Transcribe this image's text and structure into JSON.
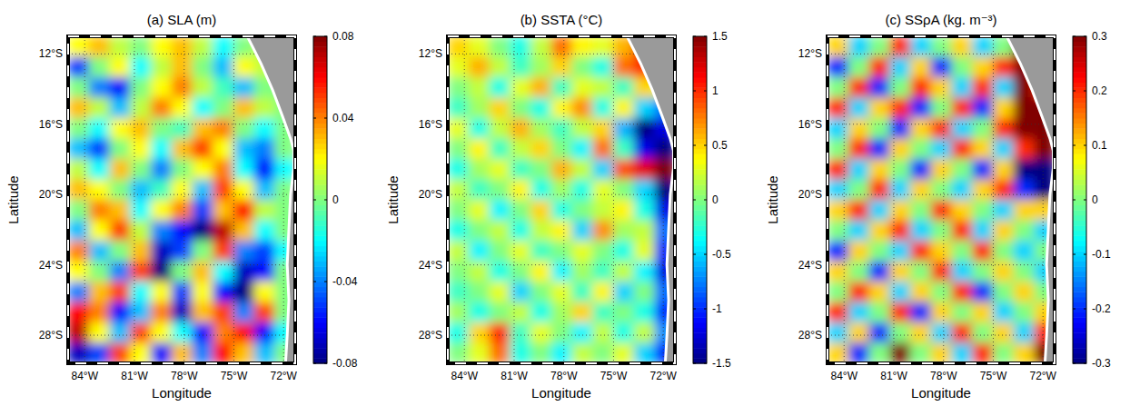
{
  "chart_data": [
    {
      "type": "heatmap",
      "title": "(a)   SLA (m)",
      "x_label": "Longitude",
      "y_label": "Latitude",
      "xlim": [
        -85,
        -71.3
      ],
      "ylim": [
        -29.6,
        -11
      ],
      "xticks": [
        {
          "value": -84,
          "label": "84°W"
        },
        {
          "value": -81,
          "label": "81°W"
        },
        {
          "value": -78,
          "label": "78°W"
        },
        {
          "value": -75,
          "label": "75°W"
        },
        {
          "value": -72,
          "label": "72°W"
        }
      ],
      "yticks": [
        {
          "value": -12,
          "label": "12°S"
        },
        {
          "value": -16,
          "label": "16°S"
        },
        {
          "value": -20,
          "label": "20°S"
        },
        {
          "value": -24,
          "label": "24°S"
        },
        {
          "value": -28,
          "label": "28°S"
        }
      ],
      "grid": true,
      "colorbar_range": [
        -0.08,
        0.08
      ],
      "colorbar_ticks": [
        -0.08,
        -0.04,
        0,
        0.04,
        0.08
      ],
      "coast": {
        "lon": [
          -74.1,
          -73.3,
          -72.6,
          -72.0,
          -71.5,
          -71.3,
          -71.3,
          -71.5,
          -71.6,
          -71.7,
          -71.6,
          -71.7,
          -71.8
        ],
        "lat": [
          -11,
          -12.5,
          -14,
          -15.5,
          -16.8,
          -17.5,
          -18.5,
          -20,
          -22,
          -24,
          -26,
          -28,
          -29.6
        ]
      },
      "cells": [
        [
          0.02,
          0.03,
          0.01,
          0,
          0.02,
          0.03,
          0.01,
          -0.02,
          0,
          0.01,
          0.01
        ],
        [
          -0.05,
          0,
          0.02,
          -0.02,
          0.01,
          0.03,
          0,
          -0.03,
          0.02,
          0.01,
          0.01
        ],
        [
          0,
          -0.04,
          -0.06,
          0,
          0.02,
          0.04,
          0.01,
          -0.01,
          -0.03,
          0,
          0
        ],
        [
          0.03,
          0.01,
          -0.03,
          0.01,
          0.04,
          0.02,
          -0.02,
          0,
          0.03,
          0.01,
          0
        ],
        [
          0,
          -0.02,
          0.02,
          0.03,
          0,
          -0.01,
          0.03,
          0.04,
          0,
          -0.02,
          0
        ],
        [
          -0.03,
          -0.05,
          0,
          0.02,
          -0.02,
          0.03,
          0.05,
          0.02,
          -0.03,
          -0.04,
          0
        ],
        [
          0.01,
          -0.02,
          0.03,
          0,
          -0.04,
          0,
          0.02,
          0.04,
          -0.02,
          -0.06,
          -0.02
        ],
        [
          0.03,
          0.02,
          0,
          -0.03,
          -0.01,
          0.02,
          -0.03,
          0.05,
          0.02,
          -0.03,
          0
        ],
        [
          0,
          0.04,
          0.03,
          -0.02,
          0.02,
          0.04,
          -0.05,
          0.03,
          0.06,
          0.01,
          0
        ],
        [
          -0.03,
          0.02,
          0.05,
          0.01,
          -0.04,
          -0.06,
          -0.08,
          0.07,
          0.03,
          -0.02,
          0
        ],
        [
          0.04,
          -0.03,
          0,
          0.03,
          -0.07,
          -0.05,
          0,
          0.05,
          -0.04,
          -0.05,
          -0.02
        ],
        [
          0.02,
          0,
          -0.04,
          0.05,
          -0.08,
          0,
          0.03,
          -0.02,
          -0.07,
          -0.06,
          0
        ],
        [
          -0.04,
          0.03,
          0.05,
          -0.02,
          0.02,
          -0.05,
          0.02,
          -0.06,
          -0.08,
          0.02,
          0
        ],
        [
          0.06,
          0.04,
          -0.06,
          -0.03,
          0.04,
          -0.07,
          0.03,
          0.05,
          -0.04,
          0.05,
          0
        ],
        [
          0.07,
          0.02,
          -0.03,
          0.05,
          0.02,
          -0.02,
          -0.06,
          0.04,
          0.06,
          -0.06,
          -0.02
        ],
        [
          -0.07,
          -0.05,
          0.05,
          0.02,
          -0.06,
          0.03,
          -0.04,
          0.06,
          0.03,
          -0.03,
          0
        ]
      ]
    },
    {
      "type": "heatmap",
      "title": "(b)   SSTA (°C)",
      "x_label": "Longitude",
      "y_label": "Latitude",
      "xlim": [
        -85,
        -71.3
      ],
      "ylim": [
        -29.6,
        -11
      ],
      "xticks": [
        {
          "value": -84,
          "label": "84°W"
        },
        {
          "value": -81,
          "label": "81°W"
        },
        {
          "value": -78,
          "label": "78°W"
        },
        {
          "value": -75,
          "label": "75°W"
        },
        {
          "value": -72,
          "label": "72°W"
        }
      ],
      "yticks": [
        {
          "value": -12,
          "label": "12°S"
        },
        {
          "value": -16,
          "label": "16°S"
        },
        {
          "value": -20,
          "label": "20°S"
        },
        {
          "value": -24,
          "label": "24°S"
        },
        {
          "value": -28,
          "label": "28°S"
        }
      ],
      "grid": true,
      "colorbar_range": [
        -1.5,
        1.5
      ],
      "colorbar_ticks": [
        -1.5,
        -1,
        -0.5,
        0,
        0.5,
        1,
        1.5
      ],
      "coast": {
        "lon": [
          -74.1,
          -73.3,
          -72.6,
          -72.0,
          -71.5,
          -71.3,
          -71.3,
          -71.5,
          -71.6,
          -71.7,
          -71.6,
          -71.7,
          -71.8
        ],
        "lat": [
          -11,
          -12.5,
          -14,
          -15.5,
          -16.8,
          -17.5,
          -18.5,
          -20,
          -22,
          -24,
          -26,
          -28,
          -29.6
        ]
      },
      "cells": [
        [
          0.5,
          0.3,
          0,
          -0.3,
          0.2,
          0.8,
          0.4,
          0.3,
          0.6,
          1.2,
          0.5
        ],
        [
          0.3,
          0.6,
          0.2,
          -0.2,
          0.1,
          0.5,
          0,
          -0.3,
          0.8,
          1.0,
          0.5
        ],
        [
          0,
          0.2,
          -0.3,
          0.3,
          0.6,
          -0.2,
          0.3,
          0.2,
          -0.2,
          0.5,
          0.3
        ],
        [
          -0.2,
          0.1,
          0.5,
          0,
          -0.3,
          0.4,
          0.7,
          -0.3,
          0.4,
          -0.5,
          -0.8
        ],
        [
          0.3,
          -0.3,
          0.2,
          0.6,
          0.1,
          -0.2,
          0.2,
          0.5,
          -0.6,
          -1.5,
          -1.2
        ],
        [
          0,
          0.4,
          -0.2,
          0.2,
          0.5,
          0,
          -0.4,
          0.8,
          -0.2,
          -1.2,
          -1.5
        ],
        [
          -0.3,
          0.1,
          0.3,
          -0.2,
          0,
          0.6,
          0.2,
          -0.5,
          0.9,
          1.2,
          1.5
        ],
        [
          0.2,
          -0.2,
          0,
          0.4,
          -0.3,
          0.1,
          -0.3,
          0.3,
          0,
          -0.5,
          -1.5
        ],
        [
          0,
          0.3,
          -0.4,
          0,
          0.5,
          -0.3,
          0,
          0.2,
          0.4,
          -0.3,
          -1.2
        ],
        [
          -0.3,
          0,
          0.2,
          -0.3,
          0.2,
          0.4,
          -0.5,
          0.7,
          0.1,
          0.2,
          -0.8
        ],
        [
          0.2,
          -0.4,
          0,
          0.3,
          -0.2,
          0,
          0.3,
          0,
          -0.3,
          0.3,
          -1.0
        ],
        [
          0,
          0.2,
          -0.3,
          0,
          0.4,
          -0.4,
          0.1,
          -0.2,
          0.2,
          -0.4,
          -1.2
        ],
        [
          -0.2,
          0,
          0.3,
          -0.5,
          0,
          0.3,
          -0.2,
          0.4,
          -0.5,
          0,
          -0.8
        ],
        [
          0.1,
          -0.3,
          0,
          0.2,
          -0.3,
          0.1,
          0.5,
          -0.2,
          0,
          -0.3,
          -1.0
        ],
        [
          -0.3,
          0.5,
          1.0,
          -0.2,
          0.3,
          0,
          -0.4,
          0.2,
          -0.3,
          0.2,
          -0.7
        ],
        [
          0,
          0.3,
          0.8,
          -0.3,
          0,
          -0.4,
          0.2,
          0,
          0.3,
          -0.5,
          -1.0
        ]
      ]
    },
    {
      "type": "heatmap",
      "title": "(c)   SSρA (kg. m⁻³)",
      "x_label": "Longitude",
      "y_label": "Latitude",
      "xlim": [
        -85,
        -71.3
      ],
      "ylim": [
        -29.6,
        -11
      ],
      "xticks": [
        {
          "value": -84,
          "label": "84°W"
        },
        {
          "value": -81,
          "label": "81°W"
        },
        {
          "value": -78,
          "label": "78°W"
        },
        {
          "value": -75,
          "label": "75°W"
        },
        {
          "value": -72,
          "label": "72°W"
        }
      ],
      "yticks": [
        {
          "value": -12,
          "label": "12°S"
        },
        {
          "value": -16,
          "label": "16°S"
        },
        {
          "value": -20,
          "label": "20°S"
        },
        {
          "value": -24,
          "label": "24°S"
        },
        {
          "value": -28,
          "label": "28°S"
        }
      ],
      "grid": true,
      "colorbar_range": [
        -0.3,
        0.3
      ],
      "colorbar_ticks": [
        -0.3,
        -0.2,
        -0.1,
        0,
        0.1,
        0.2,
        0.3
      ],
      "coast": {
        "lon": [
          -74.1,
          -73.3,
          -72.6,
          -72.0,
          -71.5,
          -71.3,
          -71.3,
          -71.5,
          -71.6,
          -71.7,
          -71.6,
          -71.7,
          -71.8
        ],
        "lat": [
          -11,
          -12.5,
          -14,
          -15.5,
          -16.8,
          -17.5,
          -18.5,
          -20,
          -22,
          -24,
          -26,
          -28,
          -29.6
        ]
      },
      "cells": [
        [
          0.1,
          -0.1,
          0,
          0.2,
          -0.1,
          0,
          0.1,
          -0.1,
          0,
          0.3,
          0.2
        ],
        [
          -0.2,
          0,
          0.2,
          -0.1,
          0.1,
          -0.2,
          0,
          0.1,
          0.2,
          0.3,
          0.2
        ],
        [
          0,
          0.2,
          -0.2,
          0,
          0.2,
          0.1,
          -0.1,
          0.2,
          -0.1,
          0.3,
          0.2
        ],
        [
          0.2,
          -0.1,
          0.1,
          0.2,
          -0.2,
          0,
          0.2,
          -0.2,
          0.1,
          0.3,
          0.3
        ],
        [
          -0.1,
          0.1,
          0,
          -0.2,
          0.1,
          0.2,
          -0.1,
          0,
          0.2,
          0.3,
          0.3
        ],
        [
          0,
          0.2,
          -0.2,
          0.1,
          0,
          -0.1,
          0.2,
          0.1,
          -0.1,
          0.2,
          0.3
        ],
        [
          0.2,
          -0.1,
          0.1,
          0,
          -0.2,
          0.1,
          0,
          -0.2,
          0.1,
          -0.3,
          -0.3
        ],
        [
          -0.1,
          0,
          0.2,
          -0.1,
          0.1,
          0,
          -0.1,
          0.1,
          0.2,
          -0.2,
          -0.3
        ],
        [
          0.1,
          0.2,
          -0.1,
          0.1,
          0,
          0.2,
          0.1,
          0,
          -0.1,
          0.1,
          0.1
        ],
        [
          0,
          -0.1,
          0.1,
          0.2,
          -0.1,
          0,
          0.2,
          -0.1,
          0.1,
          0,
          -0.1
        ],
        [
          -0.2,
          0.1,
          0,
          -0.1,
          0.2,
          0.1,
          0,
          0.2,
          0,
          -0.1,
          0
        ],
        [
          0.1,
          0,
          -0.2,
          0.1,
          0,
          0.2,
          -0.1,
          0,
          0.1,
          0,
          -0.1
        ],
        [
          0,
          0.2,
          0.1,
          -0.1,
          0.1,
          0,
          0.2,
          -0.2,
          0,
          0.1,
          0
        ],
        [
          0.2,
          -0.1,
          0,
          0.2,
          -0.2,
          0.1,
          0,
          0.1,
          -0.1,
          0,
          0.1
        ],
        [
          -0.1,
          0.1,
          -0.2,
          0,
          0.1,
          -0.1,
          0.2,
          0,
          0.1,
          -0.1,
          0.2
        ],
        [
          0.1,
          -0.2,
          0,
          0.3,
          0,
          0.1,
          -0.1,
          0.2,
          0,
          0.1,
          0.3
        ]
      ]
    }
  ]
}
